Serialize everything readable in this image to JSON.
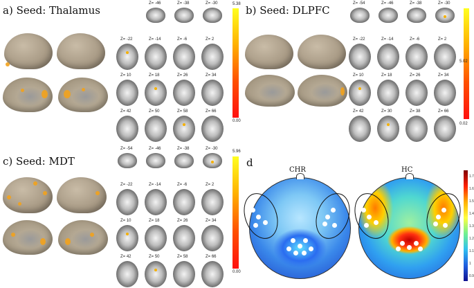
{
  "panels": {
    "a": {
      "title": "a) Seed: Thalamus",
      "max": "5.38",
      "min": "0.00"
    },
    "b": {
      "title": "b) Seed: DLPFC",
      "max": "5.02",
      "min": "0.02"
    },
    "c": {
      "title": "c) Seed: MDT",
      "max": "5.96",
      "min": "0.00"
    },
    "d": {
      "title": "d",
      "chr_label": "CHR",
      "hc_label": "HC"
    }
  },
  "z_labels_a": [
    "Z= -46",
    "Z= -38",
    "Z= -30",
    "Z= -22",
    "Z= -14",
    "Z= -6",
    "Z= 2",
    "Z= 10",
    "Z= 18",
    "Z= 26",
    "Z= 34",
    "Z= 42",
    "Z= 50",
    "Z= 58",
    "Z= 66"
  ],
  "z_labels_b": [
    "Z= -54",
    "Z= -46",
    "Z= -38",
    "Z= -30",
    "Z= -22",
    "Z= -14",
    "Z= -6",
    "Z= 2",
    "Z= 10",
    "Z= 18",
    "Z= 26",
    "Z= 34",
    "Z= 42",
    "Z= 30",
    "Z= 38",
    "Z= 66"
  ],
  "z_labels_c": [
    "Z= -54",
    "Z= -46",
    "Z= -38",
    "Z= -30",
    "Z= -22",
    "Z= -14",
    "Z= -6",
    "Z= 2",
    "Z= 10",
    "Z= 18",
    "Z= 26",
    "Z= 34",
    "Z= 42",
    "Z= 50",
    "Z= 58",
    "Z= 66"
  ],
  "d_scale": [
    "1.7",
    "1.6",
    "1.5",
    "1.4",
    "1.3",
    "1.2",
    "1.1",
    "1",
    "0.9"
  ]
}
